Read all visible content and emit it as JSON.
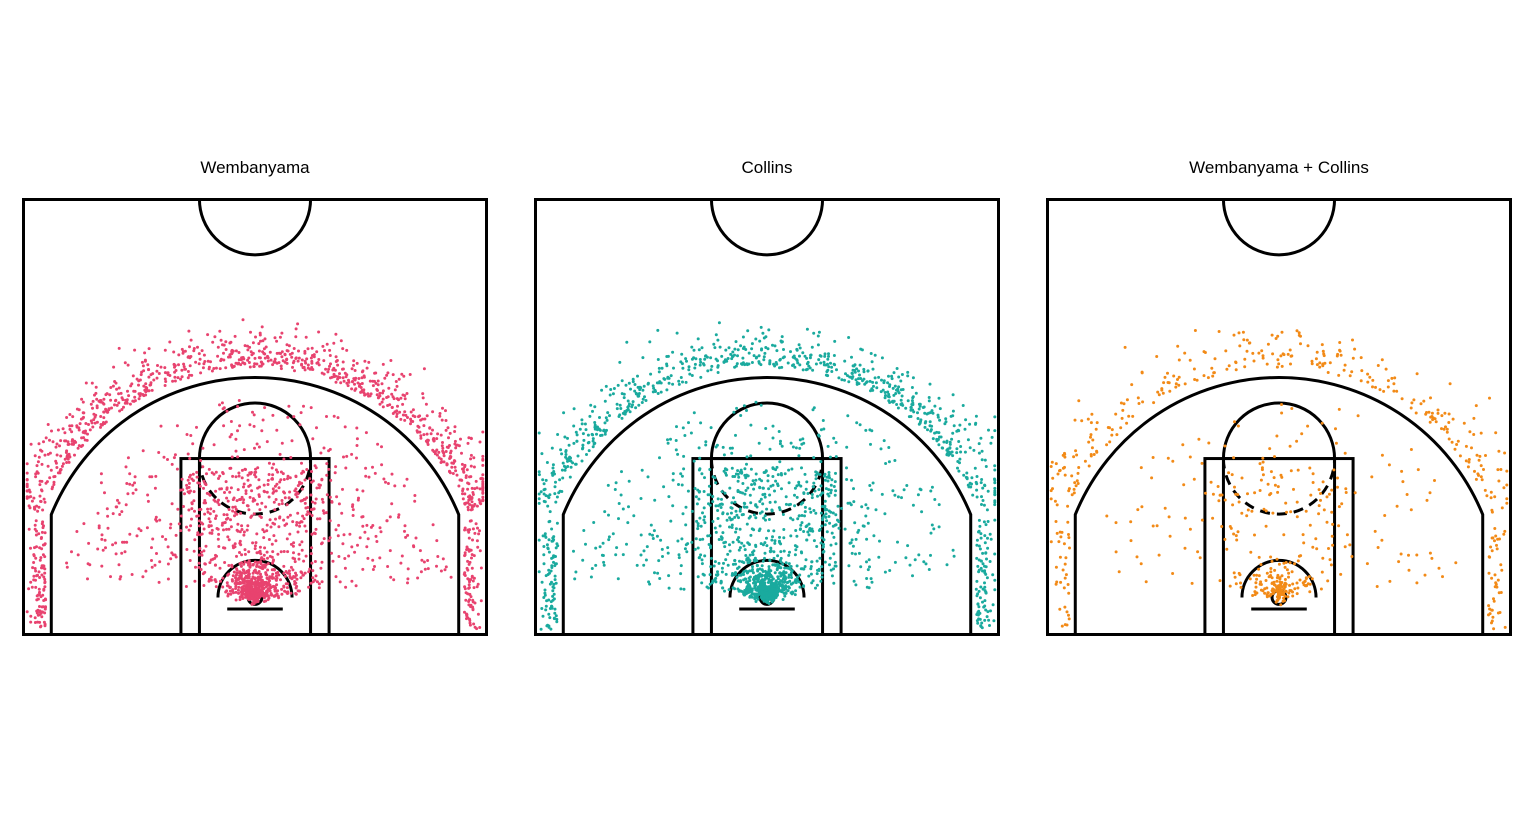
{
  "figure": {
    "background": "#ffffff",
    "line_color": "#000000"
  },
  "chart_data": [
    {
      "type": "scatter",
      "title": "Wembanyama",
      "color": "#e8436f",
      "xlabel": "",
      "ylabel": "",
      "grid": false,
      "units": "feet from basket (x: baseline-to-baseline across, y: away from baseline)",
      "xlim": [
        -25,
        25
      ],
      "ylim": [
        0,
        47
      ],
      "approx_shot_count": 2400,
      "distribution": [
        {
          "zone": "restricted area",
          "share": 0.22
        },
        {
          "zone": "paint",
          "share": 0.16
        },
        {
          "zone": "mid-range",
          "share": 0.17
        },
        {
          "zone": "corner three",
          "share": 0.08
        },
        {
          "zone": "above-the-break three",
          "share": 0.37
        }
      ]
    },
    {
      "type": "scatter",
      "title": "Collins",
      "color": "#1aaa9e",
      "xlabel": "",
      "ylabel": "",
      "grid": false,
      "units": "feet from basket (x: baseline-to-baseline across, y: away from baseline)",
      "xlim": [
        -25,
        25
      ],
      "ylim": [
        0,
        47
      ],
      "approx_shot_count": 2200,
      "distribution": [
        {
          "zone": "restricted area",
          "share": 0.24
        },
        {
          "zone": "paint",
          "share": 0.2
        },
        {
          "zone": "mid-range",
          "share": 0.16
        },
        {
          "zone": "corner three",
          "share": 0.08
        },
        {
          "zone": "above-the-break three",
          "share": 0.32
        }
      ]
    },
    {
      "type": "scatter",
      "title": "Wembanyama + Collins",
      "color": "#f28a17",
      "xlabel": "",
      "ylabel": "",
      "grid": false,
      "units": "feet from basket (x: baseline-to-baseline across, y: away from baseline)",
      "xlim": [
        -25,
        25
      ],
      "ylim": [
        0,
        47
      ],
      "approx_shot_count": 750,
      "distribution": [
        {
          "zone": "restricted area",
          "share": 0.2
        },
        {
          "zone": "paint",
          "share": 0.13
        },
        {
          "zone": "mid-range",
          "share": 0.17
        },
        {
          "zone": "corner three",
          "share": 0.1
        },
        {
          "zone": "above-the-break three",
          "share": 0.4
        }
      ]
    }
  ]
}
